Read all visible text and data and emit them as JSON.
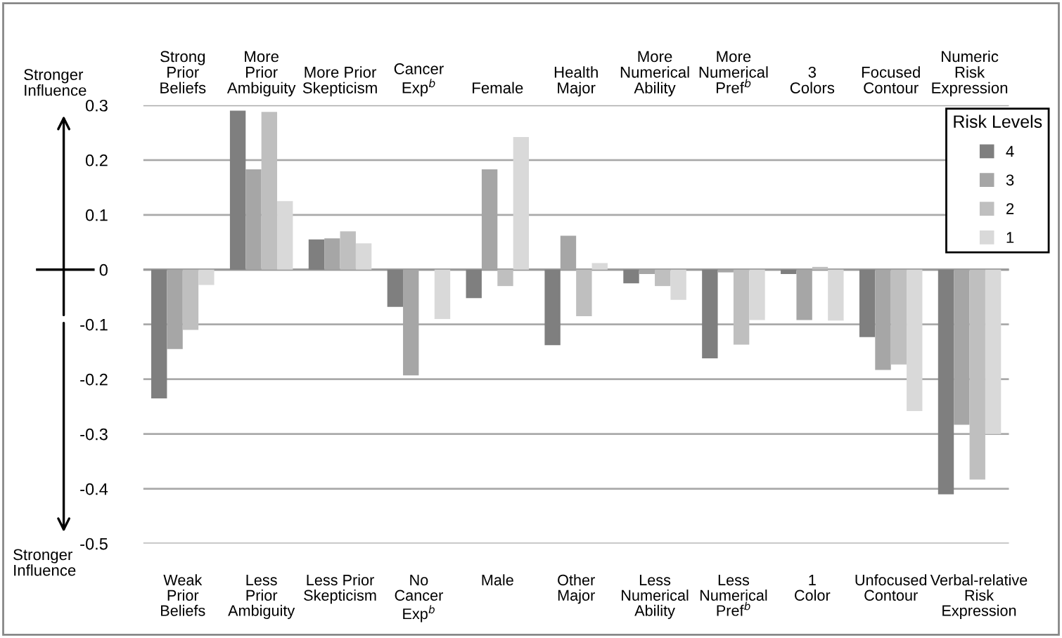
{
  "chart_data": {
    "type": "bar",
    "categories": [
      "Strong\nPrior\nBeliefs",
      "More\nPrior\nAmbiguity",
      "More Prior\nSkepticism",
      "Cancer\nExp$^{b}$",
      "Female",
      "Health\nMajor",
      "More\nNumerical\nAbility",
      "More\nNumerical\nPref$^{b}$",
      "3\nColors",
      "Focused\nContour",
      "Numeric\nRisk\nExpression"
    ],
    "series": [
      {
        "name": "4",
        "color": "#7f7f7f",
        "values": [
          -0.235,
          0.29,
          0.055,
          -0.068,
          -0.052,
          -0.138,
          -0.025,
          -0.162,
          -0.008,
          -0.123,
          -0.41
        ]
      },
      {
        "name": "3",
        "color": "#a6a6a6",
        "values": [
          -0.145,
          0.183,
          0.057,
          -0.193,
          0.183,
          0.062,
          -0.008,
          -0.005,
          -0.092,
          -0.183,
          -0.283
        ]
      },
      {
        "name": "2",
        "color": "#bfbfbf",
        "values": [
          -0.11,
          0.288,
          0.07,
          0,
          -0.03,
          -0.085,
          -0.03,
          -0.137,
          0.005,
          -0.173,
          -0.383
        ]
      },
      {
        "name": "1",
        "color": "#d9d9d9",
        "values": [
          -0.028,
          0.125,
          0.048,
          -0.09,
          0.242,
          0.012,
          -0.055,
          -0.092,
          -0.093,
          -0.258,
          -0.3
        ]
      }
    ],
    "legend_title": "Risk Levels",
    "legend": "top right",
    "ylim": [
      -0.5,
      0.3
    ],
    "yticks": [
      -0.5,
      -0.4,
      -0.3,
      -0.2,
      -0.1,
      0,
      0.1,
      0.2,
      0.3
    ],
    "grid": "y",
    "annotations": [
      "Weak\nPrior\nBeliefs",
      "Less\nPrior\nAmbiguity",
      "Less Prior\nSkepticism",
      "No\nCancer\nExp$^{b}$",
      "Male",
      "Other\nMajor",
      "Less\nNumerical\nAbility",
      "Less\nNumerical\nPref$^{b}$",
      "1\nColor",
      "Unfocused\nContour",
      "Verbal-relative\nRisk\nExpression",
      "Stronger\nInfluence",
      "Stronger\nInfluence"
    ]
  }
}
